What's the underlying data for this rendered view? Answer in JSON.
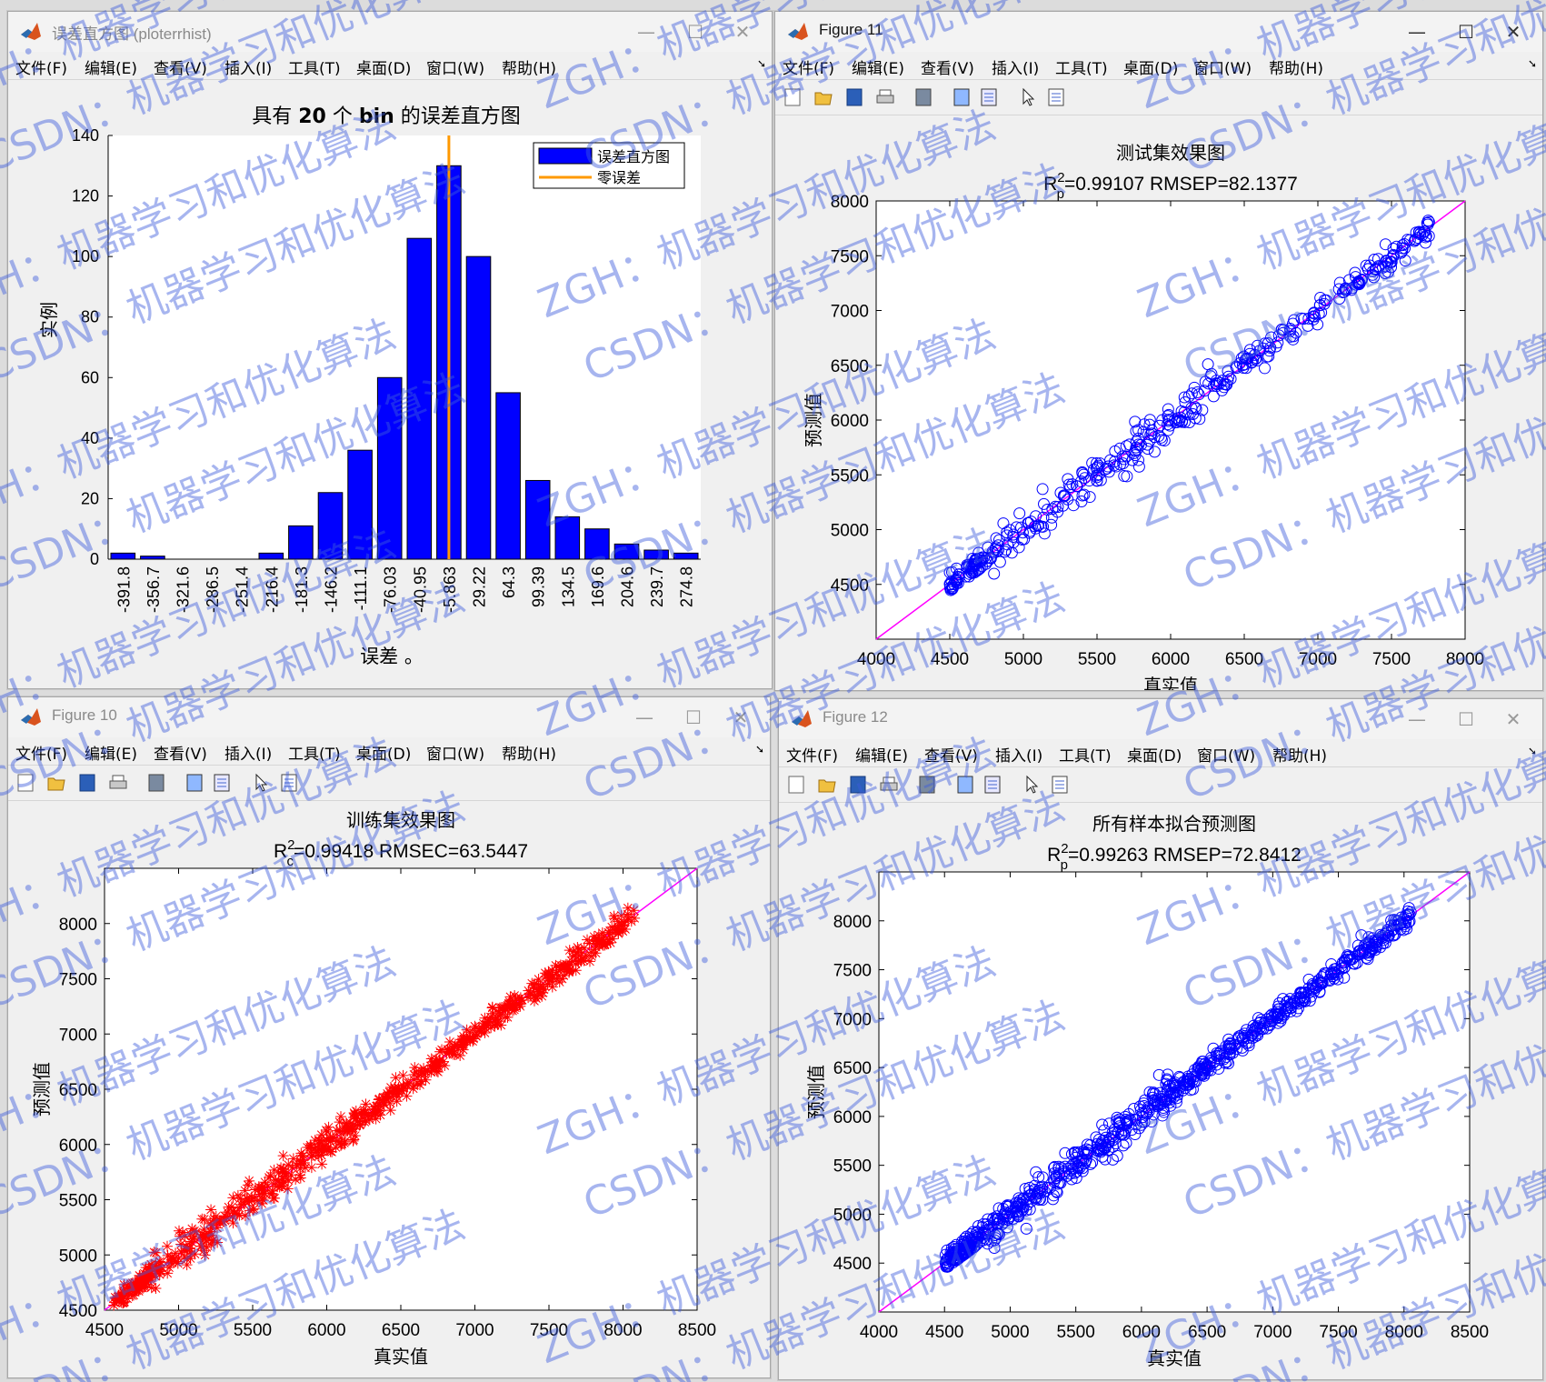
{
  "menus": [
    "文件(F)",
    "编辑(E)",
    "查看(V)",
    "插入(I)",
    "工具(T)",
    "桌面(D)",
    "窗口(W)",
    "帮助(H)"
  ],
  "win_buttons": {
    "minimize": "—",
    "maximize": "☐",
    "close": "✕"
  },
  "windows": {
    "hist": {
      "title": "误差直方图 (ploterrhist)"
    },
    "fig11": {
      "title": "Figure 11"
    },
    "fig10": {
      "title": "Figure 10"
    },
    "fig12": {
      "title": "Figure 12"
    }
  },
  "watermark": {
    "text1": "ZGH：机器学习和优化算法",
    "text2": "CSDN：机器学习和优化算法",
    "color": "#3b5bdb"
  },
  "chart_data": [
    {
      "id": "hist",
      "type": "bar",
      "title_pre": "具有 ",
      "title_num": "20",
      "title_mid": " 个 ",
      "title_bin": "bin",
      "title_post": " 的误差直方图",
      "xlabel": "误差 。",
      "ylabel": "实例",
      "categories": [
        "-391.8",
        "-356.7",
        "-321.6",
        "-286.5",
        "-251.4",
        "-216.4",
        "-181.3",
        "-146.2",
        "-111.1",
        "-76.03",
        "-40.95",
        "-5.863",
        "29.22",
        "64.3",
        "99.39",
        "134.5",
        "169.6",
        "204.6",
        "239.7",
        "274.8"
      ],
      "values": [
        2,
        1,
        0,
        0,
        0,
        2,
        11,
        22,
        36,
        60,
        106,
        130,
        100,
        55,
        26,
        14,
        10,
        5,
        3,
        2
      ],
      "ylim": [
        0,
        140
      ],
      "yticks": [
        0,
        20,
        40,
        60,
        80,
        100,
        120,
        140
      ],
      "zero_error_category_index": 11,
      "legend": {
        "bar": "误差直方图",
        "line": "零误差",
        "placement": "top-right"
      },
      "colors": {
        "bar": "#0000ff",
        "zero_line": "#ff9900"
      }
    },
    {
      "id": "fig11",
      "type": "scatter",
      "title": "测试集效果图",
      "stat_pre": "R",
      "stat_sup": "2",
      "stat_sub": "p",
      "stat_text": "=0.99107  RMSEP=82.1377",
      "xlabel": "真实值",
      "ylabel": "预测值",
      "xlim": [
        4000,
        8000
      ],
      "ylim": [
        4000,
        8000
      ],
      "xticks": [
        4000,
        4500,
        5000,
        5500,
        6000,
        6500,
        7000,
        7500,
        8000
      ],
      "yticks": [
        4500,
        5000,
        5500,
        6000,
        6500,
        7000,
        7500,
        8000
      ],
      "marker": "circle",
      "color": "#0000ff",
      "fit_line_color": "#ff00ff",
      "x_range": [
        4500,
        7760
      ],
      "n_points": 420,
      "spread": 55
    },
    {
      "id": "fig10",
      "type": "scatter",
      "title": "训练集效果图",
      "stat_pre": "R",
      "stat_sup": "2",
      "stat_sub": "c",
      "stat_text": "=0.99418  RMSEC=63.5447",
      "xlabel": "真实值",
      "ylabel": "预测值",
      "xlim": [
        4500,
        8500
      ],
      "ylim": [
        4500,
        8500
      ],
      "xticks": [
        4500,
        5000,
        5500,
        6000,
        6500,
        7000,
        7500,
        8000,
        8500
      ],
      "yticks": [
        4500,
        5000,
        5500,
        6000,
        6500,
        7000,
        7500,
        8000
      ],
      "marker": "star",
      "color": "#ff0000",
      "fit_line_color": "#ff00ff",
      "x_range": [
        4560,
        8080
      ],
      "n_points": 700,
      "spread": 50
    },
    {
      "id": "fig12",
      "type": "scatter",
      "title": "所有样本拟合预测图",
      "stat_pre": "R",
      "stat_sup": "2",
      "stat_sub": "p",
      "stat_text": "=0.99263  RMSEP=72.8412",
      "xlabel": "真实值",
      "ylabel": "预测值",
      "xlim": [
        4000,
        8500
      ],
      "ylim": [
        4000,
        8500
      ],
      "xticks": [
        4000,
        4500,
        5000,
        5500,
        6000,
        6500,
        7000,
        7500,
        8000,
        8500
      ],
      "yticks": [
        4500,
        5000,
        5500,
        6000,
        6500,
        7000,
        7500,
        8000
      ],
      "marker": "circle",
      "color": "#0000ff",
      "fit_line_color": "#ff00ff",
      "x_range": [
        4500,
        8080
      ],
      "n_points": 800,
      "spread": 55
    }
  ]
}
